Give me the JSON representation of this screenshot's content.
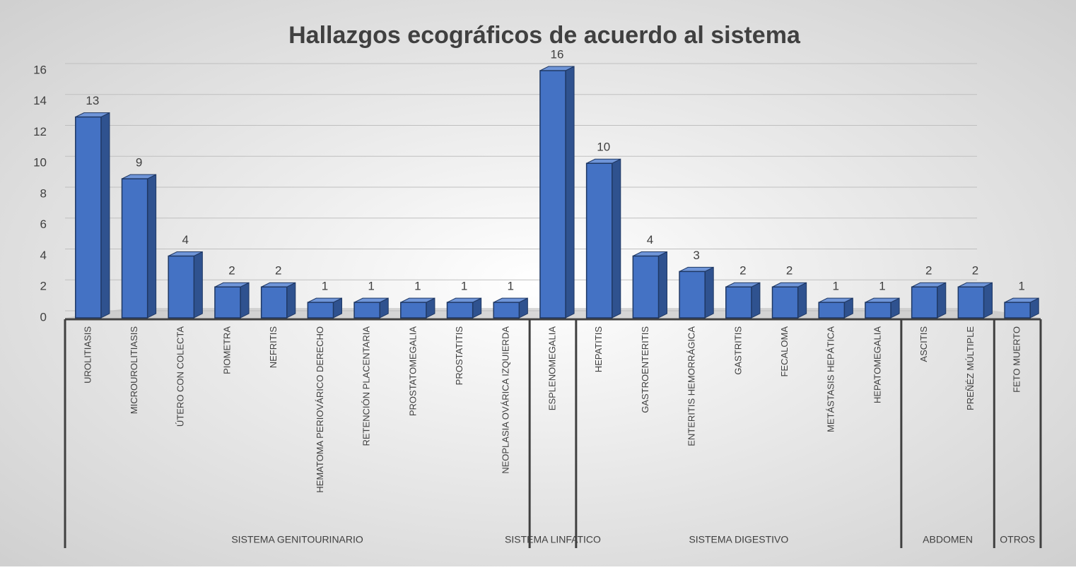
{
  "chart_data": {
    "type": "bar",
    "title": "Hallazgos ecográficos de acuerdo al sistema",
    "categories": [
      "UROLITIASIS",
      "MICROUROLITIASIS",
      "ÚTERO CON COLECTA",
      "PIOMETRA",
      "NEFRITIS",
      "HEMATOMA PERIOVÁRICO DERECHO",
      "RETENCIÓN PLACENTARIA",
      "PROSTATOMEGALIA",
      "PROSTATITIS",
      "NEOPLASIA OVÁRICA IZQUIERDA",
      "ESPLENOMEGALIA",
      "HEPATITIS",
      "GASTROENTERITIS",
      "ENTERITIS HEMORRÁGICA",
      "GASTRITIS",
      "FECALOMA",
      "METÁSTASIS HEPÁTICA",
      "HEPATOMEGALIA",
      "ASCITIS",
      "PREÑÉZ MÚLTIPLE",
      "FETO MUERTO"
    ],
    "values": [
      13,
      9,
      4,
      2,
      2,
      1,
      1,
      1,
      1,
      1,
      16,
      10,
      4,
      3,
      2,
      2,
      1,
      1,
      2,
      2,
      1
    ],
    "category_groups": [
      {
        "name": "SISTEMA GENITOURINARIO",
        "categories": [
          "UROLITIASIS",
          "MICROUROLITIASIS",
          "ÚTERO CON COLECTA",
          "PIOMETRA",
          "NEFRITIS",
          "HEMATOMA PERIOVÁRICO DERECHO",
          "RETENCIÓN PLACENTARIA",
          "PROSTATOMEGALIA",
          "PROSTATITIS",
          "NEOPLASIA OVÁRICA IZQUIERDA"
        ]
      },
      {
        "name": "SISTEMA LINFATICO",
        "categories": [
          "ESPLENOMEGALIA"
        ]
      },
      {
        "name": "SISTEMA DIGESTIVO",
        "categories": [
          "HEPATITIS",
          "GASTROENTERITIS",
          "ENTERITIS HEMORRÁGICA",
          "GASTRITIS",
          "FECALOMA",
          "METÁSTASIS HEPÁTICA",
          "HEPATOMEGALIA"
        ]
      },
      {
        "name": "ABDOMEN",
        "categories": [
          "ASCITIS",
          "PREÑÉZ MÚLTIPLE"
        ]
      },
      {
        "name": "OTROS",
        "categories": [
          "FETO MUERTO"
        ]
      }
    ],
    "color": "#4472c4",
    "ylim": [
      0,
      16
    ],
    "yticks": [
      0,
      2,
      4,
      6,
      8,
      10,
      12,
      14,
      16
    ],
    "grid": true
  }
}
